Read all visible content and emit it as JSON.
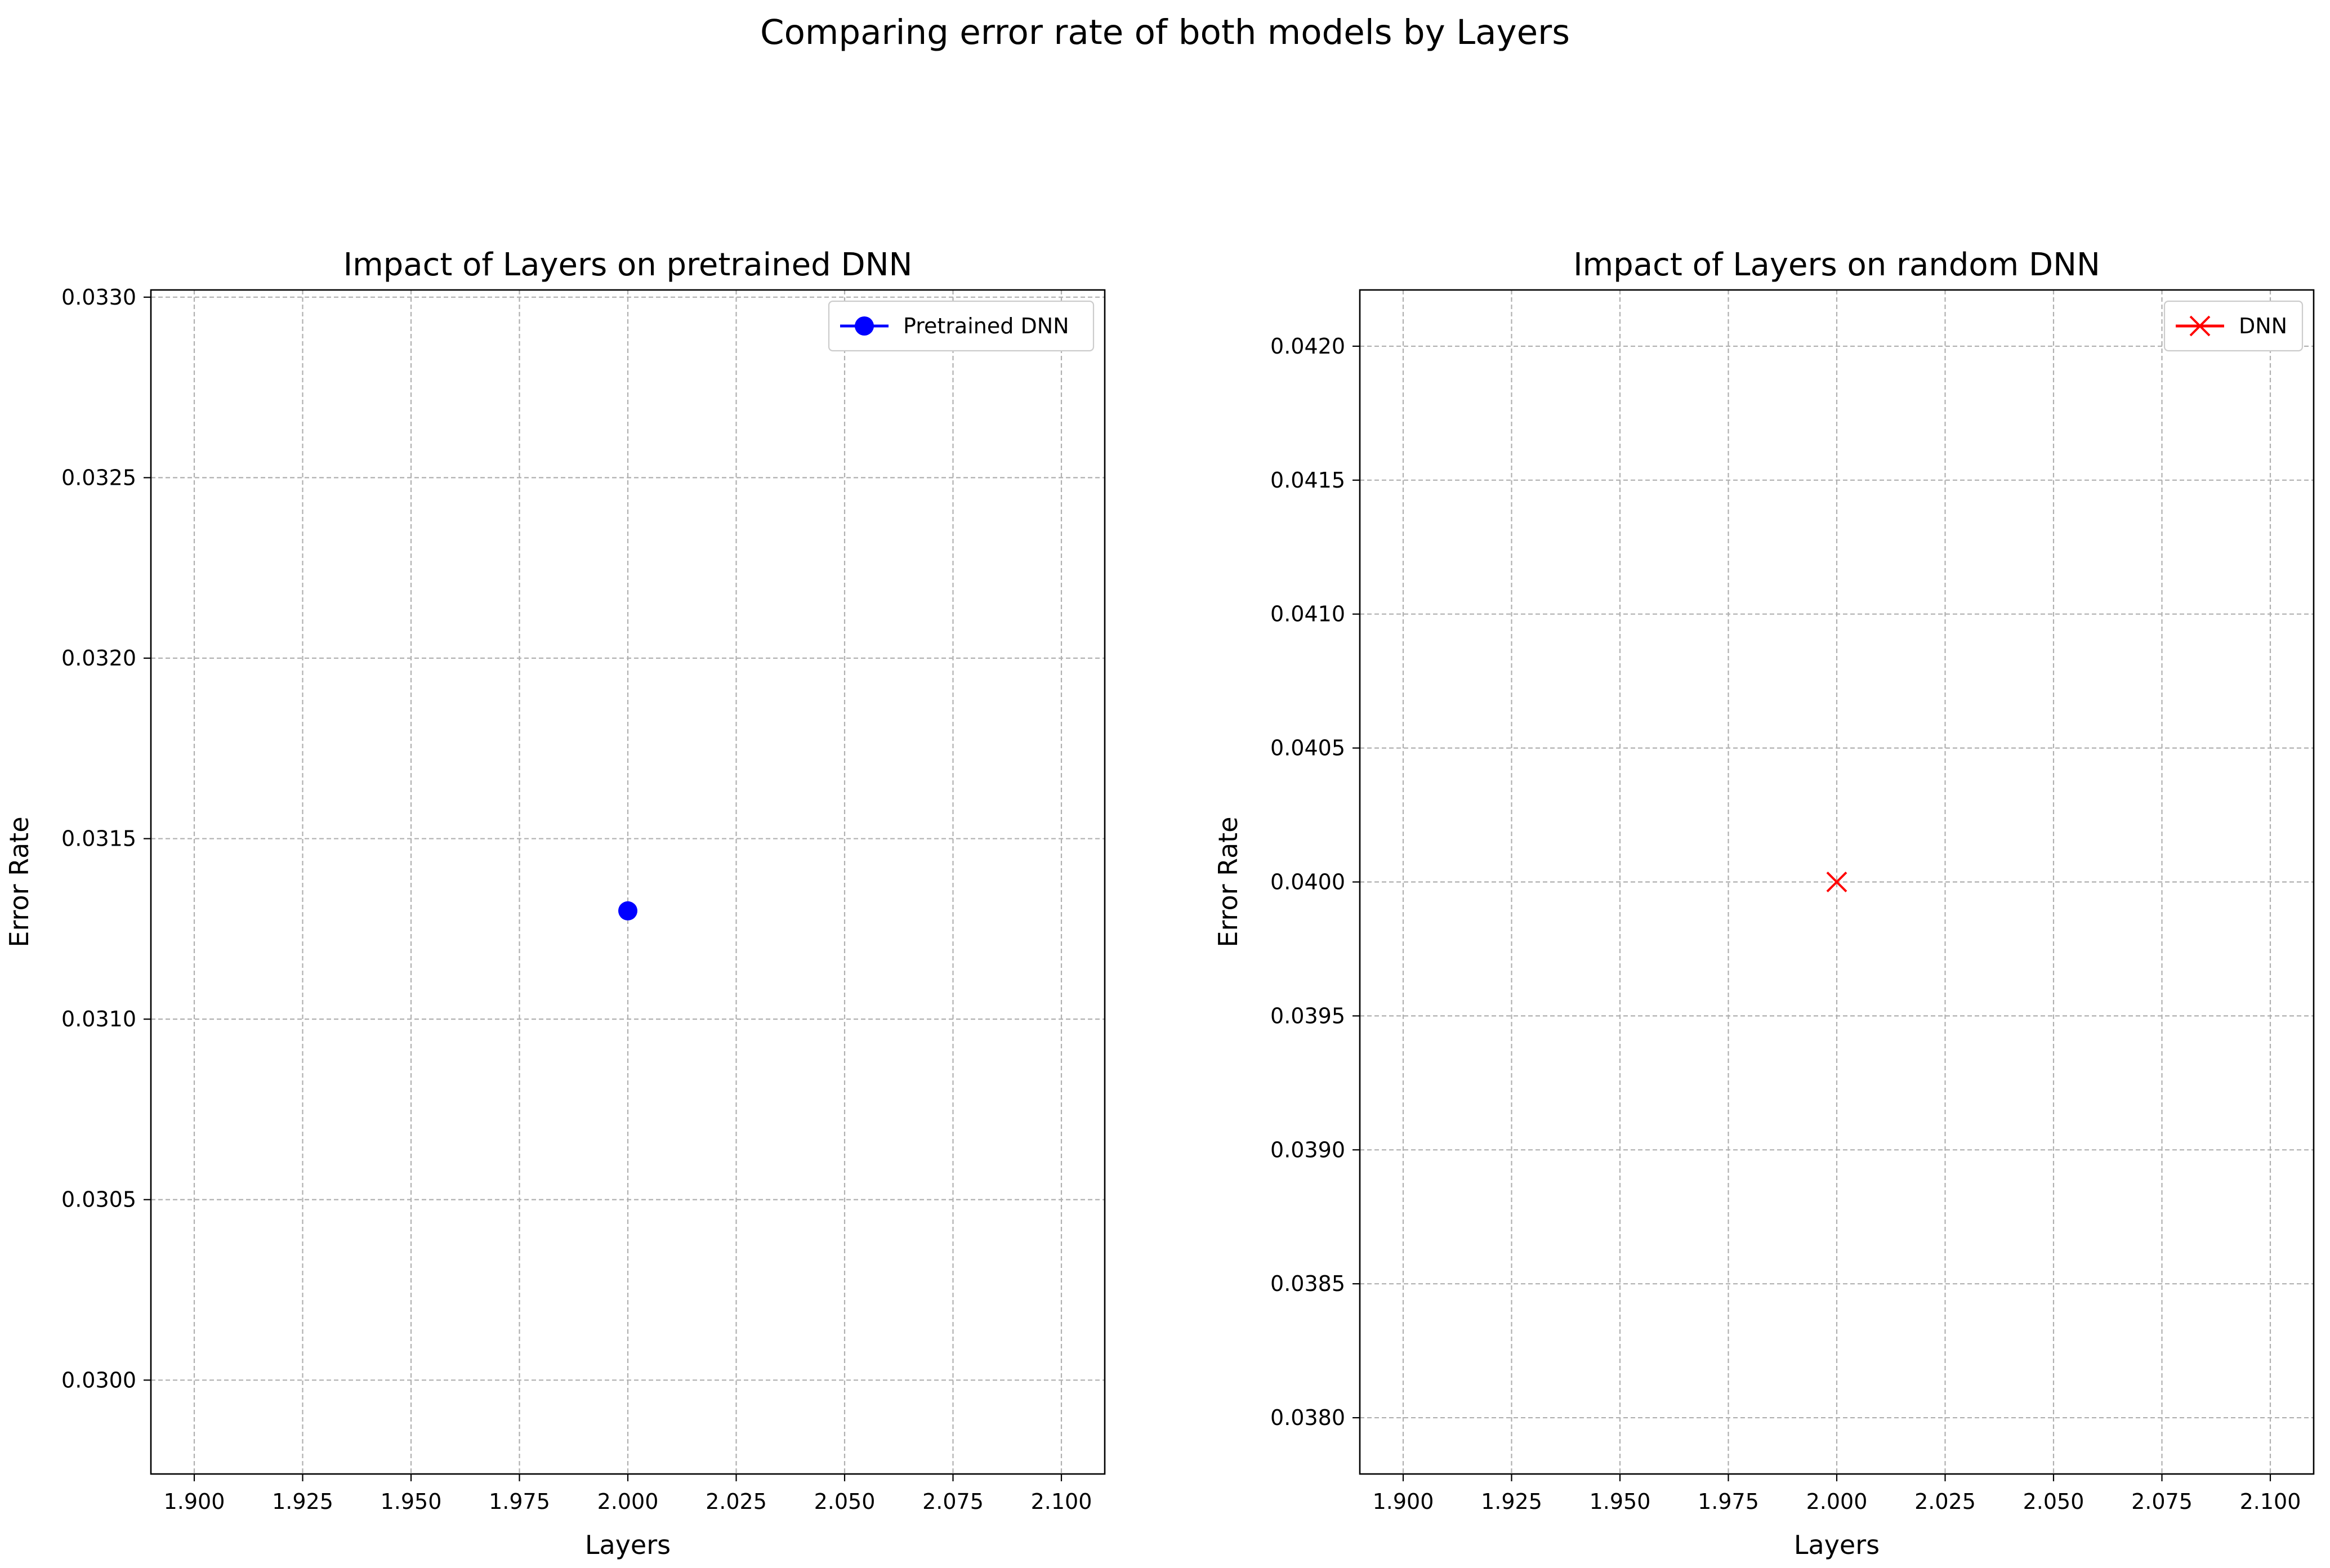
{
  "figure": {
    "suptitle": "Comparing error rate of both models by Layers"
  },
  "chart_data": [
    {
      "type": "line",
      "title": "Impact of Layers on pretrained DNN",
      "xlabel": "Layers",
      "ylabel": "Error Rate",
      "xlim": [
        1.89,
        2.11
      ],
      "ylim": [
        0.02974,
        0.03302
      ],
      "xticks": [
        1.9,
        1.925,
        1.95,
        1.975,
        2.0,
        2.025,
        2.05,
        2.075,
        2.1
      ],
      "xtick_labels": [
        "1.900",
        "1.925",
        "1.950",
        "1.975",
        "2.000",
        "2.025",
        "2.050",
        "2.075",
        "2.100"
      ],
      "yticks": [
        0.03,
        0.0305,
        0.031,
        0.0315,
        0.032,
        0.0325,
        0.033
      ],
      "ytick_labels": [
        "0.0300",
        "0.0305",
        "0.0310",
        "0.0315",
        "0.0320",
        "0.0325",
        "0.0330"
      ],
      "grid": true,
      "legend_position": "top-right",
      "series": [
        {
          "name": "Pretrained DNN",
          "color": "#0000ff",
          "marker": "circle",
          "x": [
            2.0
          ],
          "y": [
            0.0313
          ]
        }
      ]
    },
    {
      "type": "line",
      "title": "Impact of Layers on random DNN",
      "xlabel": "Layers",
      "ylabel": "Error Rate",
      "xlim": [
        1.89,
        2.11
      ],
      "ylim": [
        0.03779,
        0.04221
      ],
      "xticks": [
        1.9,
        1.925,
        1.95,
        1.975,
        2.0,
        2.025,
        2.05,
        2.075,
        2.1
      ],
      "xtick_labels": [
        "1.900",
        "1.925",
        "1.950",
        "1.975",
        "2.000",
        "2.025",
        "2.050",
        "2.075",
        "2.100"
      ],
      "yticks": [
        0.038,
        0.0385,
        0.039,
        0.0395,
        0.04,
        0.0405,
        0.041,
        0.0415,
        0.042
      ],
      "ytick_labels": [
        "0.0380",
        "0.0385",
        "0.0390",
        "0.0395",
        "0.0400",
        "0.0405",
        "0.0410",
        "0.0415",
        "0.0420"
      ],
      "grid": true,
      "legend_position": "top-right",
      "series": [
        {
          "name": "DNN",
          "color": "#ff0000",
          "marker": "x",
          "x": [
            2.0
          ],
          "y": [
            0.04
          ]
        }
      ]
    }
  ]
}
